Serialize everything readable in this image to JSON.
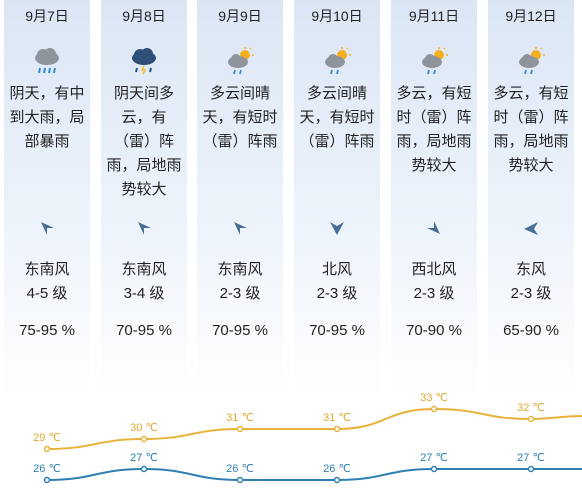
{
  "days": [
    {
      "date": "9月7日",
      "icon": "heavy-rain-cloud-icon",
      "desc_lines": [
        "阴天，有中",
        "到大雨，局",
        "部暴雨"
      ],
      "wind_dir": "东南风",
      "wind_level": "4-5 级",
      "wind_arrow": "arrow-southeast-icon",
      "humidity": "75-95 %"
    },
    {
      "date": "9月8日",
      "icon": "thunderstorm-cloud-icon",
      "desc_lines": [
        "阴天间多",
        "云，有",
        "（雷）阵",
        "雨，局地雨",
        "势较大"
      ],
      "wind_dir": "东南风",
      "wind_level": "3-4 级",
      "wind_arrow": "arrow-southeast-icon",
      "humidity": "70-95 %"
    },
    {
      "date": "9月9日",
      "icon": "sun-cloud-shower-icon",
      "desc_lines": [
        "多云间晴",
        "天，有短时",
        "（雷）阵雨"
      ],
      "wind_dir": "东南风",
      "wind_level": "2-3 级",
      "wind_arrow": "arrow-southeast-icon",
      "humidity": "70-95 %"
    },
    {
      "date": "9月10日",
      "icon": "sun-cloud-shower-icon",
      "desc_lines": [
        "多云间晴",
        "天，有短时",
        "（雷）阵雨"
      ],
      "wind_dir": "北风",
      "wind_level": "2-3 级",
      "wind_arrow": "arrow-north-icon",
      "humidity": "70-95 %"
    },
    {
      "date": "9月11日",
      "icon": "sun-cloud-shower-icon",
      "desc_lines": [
        "多云，有短",
        "时（雷）阵",
        "雨，局地雨",
        "势较大"
      ],
      "wind_dir": "西北风",
      "wind_level": "2-3 级",
      "wind_arrow": "arrow-northwest-icon",
      "humidity": "70-90 %"
    },
    {
      "date": "9月12日",
      "icon": "sun-cloud-shower-icon",
      "desc_lines": [
        "多云，有短",
        "时（雷）阵",
        "雨，局地雨",
        "势较大"
      ],
      "wind_dir": "东风",
      "wind_level": "2-3 级",
      "wind_arrow": "arrow-east-icon",
      "humidity": "65-90 %"
    }
  ],
  "chart_data": {
    "type": "line",
    "categories": [
      "9月7日",
      "9月8日",
      "9月9日",
      "9月10日",
      "9月11日",
      "9月12日"
    ],
    "series": [
      {
        "values": [
          29,
          30,
          31,
          31,
          33,
          32
        ],
        "labels": [
          "29 ℃",
          "30 ℃",
          "31 ℃",
          "31 ℃",
          "33 ℃",
          "32 ℃"
        ],
        "color": "#e8b23a"
      },
      {
        "values": [
          26,
          27,
          26,
          26,
          27,
          27
        ],
        "labels": [
          "26 ℃",
          "27 ℃",
          "26 ℃",
          "26 ℃",
          "27 ℃",
          "27 ℃"
        ],
        "color": "#2e7fb4"
      }
    ]
  }
}
